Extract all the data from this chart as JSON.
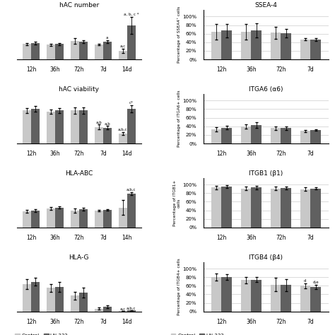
{
  "left_panels": [
    {
      "title": "hAC number",
      "categories": [
        "12h",
        "36h",
        "72h",
        "7d",
        "14d"
      ],
      "control_vals": [
        1.0,
        0.95,
        1.2,
        0.95,
        0.55
      ],
      "ln332_vals": [
        1.05,
        1.0,
        1.15,
        1.15,
        2.2
      ],
      "control_err": [
        0.07,
        0.07,
        0.2,
        0.05,
        0.15
      ],
      "ln332_err": [
        0.08,
        0.08,
        0.1,
        0.1,
        0.55
      ],
      "ylim": [
        0,
        3.2
      ],
      "yticks": [],
      "ann_14d_ctrl": "a,c",
      "ann_14d_ln": "a, b, c *",
      "ann_7d_ln": "a"
    },
    {
      "title": "hAC viability",
      "categories": [
        "12h",
        "36h",
        "72h",
        "7d",
        "14d"
      ],
      "control_vals": [
        1.0,
        0.97,
        1.0,
        0.5,
        0.3
      ],
      "ln332_vals": [
        1.05,
        1.0,
        1.0,
        0.48,
        1.05
      ],
      "control_err": [
        0.07,
        0.07,
        0.1,
        0.07,
        0.05
      ],
      "ln332_err": [
        0.08,
        0.08,
        0.1,
        0.05,
        0.1
      ],
      "ylim": [
        0,
        1.5
      ],
      "yticks": [],
      "ann_7d_ctrl": "a,b",
      "ann_7d_ln": "a,b",
      "ann_14d_ctrl": "a,b,c",
      "ann_14d_ln": "c*"
    },
    {
      "title": "HLA-ABC",
      "categories": [
        "12h",
        "36h",
        "72h",
        "7d",
        "14h"
      ],
      "control_vals": [
        0.52,
        0.62,
        0.55,
        0.55,
        0.65
      ],
      "ln332_vals": [
        0.55,
        0.65,
        0.6,
        0.57,
        1.1
      ],
      "control_err": [
        0.05,
        0.05,
        0.06,
        0.03,
        0.25
      ],
      "ln332_err": [
        0.05,
        0.04,
        0.05,
        0.03,
        0.05
      ],
      "ylim": [
        0,
        1.6
      ],
      "yticks": [],
      "ann_14h_ln": "a,b,c"
    },
    {
      "title": "HLA-G",
      "categories": [
        "12h",
        "36h",
        "72h",
        "7d",
        "14d"
      ],
      "control_vals": [
        0.55,
        0.48,
        0.32,
        0.06,
        0.01
      ],
      "ln332_vals": [
        0.6,
        0.5,
        0.38,
        0.1,
        0.02
      ],
      "control_err": [
        0.1,
        0.08,
        0.08,
        0.02,
        0.005
      ],
      "ln332_err": [
        0.08,
        0.1,
        0.1,
        0.025,
        0.005
      ],
      "ylim": [
        0,
        1.0
      ],
      "yticks": [],
      "ann_14d_ctrl": "a,c",
      "ann_14d_ln": "a,b,c"
    }
  ],
  "right_panels": [
    {
      "title": "SSEA-4",
      "categories": [
        "12h",
        "36h",
        "72h",
        "7d"
      ],
      "control_vals": [
        65,
        65,
        62,
        47
      ],
      "ln332_vals": [
        67,
        68,
        61,
        46
      ],
      "control_err": [
        18,
        18,
        14,
        3
      ],
      "ln332_err": [
        15,
        16,
        10,
        3
      ],
      "ylabel": "Percentage of SSEA4⁺ cells",
      "ylim": [
        0,
        115
      ],
      "yticks": [
        0,
        20,
        40,
        60,
        80,
        100
      ],
      "yticklabels": [
        "0%",
        "20%",
        "40%",
        "60%",
        "80%",
        "100%"
      ]
    },
    {
      "title": "ITGA6 (α6)",
      "categories": [
        "12h",
        "36h",
        "72h",
        "7d"
      ],
      "control_vals": [
        33,
        40,
        36,
        29
      ],
      "ln332_vals": [
        37,
        43,
        36,
        31
      ],
      "control_err": [
        5,
        5,
        4,
        2
      ],
      "ln332_err": [
        4,
        7,
        4,
        2
      ],
      "ylabel": "Percentage of ITGA6+ cells",
      "ylim": [
        0,
        115
      ],
      "yticks": [
        0,
        20,
        40,
        60,
        80,
        100
      ],
      "yticklabels": [
        "0%",
        "20%",
        "40%",
        "60%",
        "80%",
        "100%"
      ]
    },
    {
      "title": "ITGB1 (β1)",
      "categories": [
        "12h",
        "36h",
        "72h",
        "7d"
      ],
      "control_vals": [
        93,
        91,
        91,
        89
      ],
      "ln332_vals": [
        95,
        93,
        92,
        91
      ],
      "control_err": [
        4,
        4,
        4,
        4
      ],
      "ln332_err": [
        3,
        4,
        4,
        3
      ],
      "ylabel": "Percentage of ITGB1+\ncells",
      "ylim": [
        0,
        115
      ],
      "yticks": [
        0,
        20,
        40,
        60,
        80,
        100
      ],
      "yticklabels": [
        "0%",
        "20%",
        "40%",
        "60%",
        "80%",
        "100%"
      ]
    },
    {
      "title": "ITGB4 (β4)",
      "categories": [
        "12h",
        "36h",
        "72h",
        "7d"
      ],
      "control_vals": [
        80,
        73,
        63,
        60
      ],
      "ln332_vals": [
        80,
        74,
        62,
        58
      ],
      "control_err": [
        8,
        7,
        15,
        6
      ],
      "ln332_err": [
        7,
        6,
        14,
        5
      ],
      "ylabel": "Percentage of ITGB4+ cells",
      "ylim": [
        0,
        115
      ],
      "yticks": [
        0,
        20,
        40,
        60,
        80,
        100
      ],
      "yticklabels": [
        "0%",
        "20%",
        "40%",
        "60%",
        "80%",
        "100%"
      ],
      "ann_7d_ctrl": "d",
      "ann_7d_ln": "d,e"
    }
  ],
  "control_color": "#c8c8c8",
  "ln332_color": "#606060",
  "bg_color": "#ffffff"
}
